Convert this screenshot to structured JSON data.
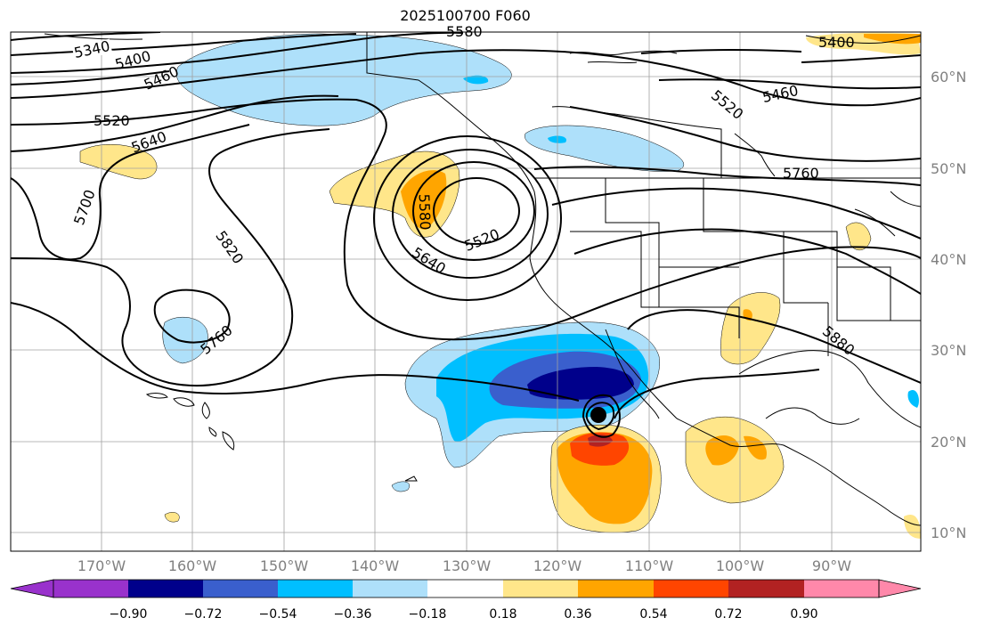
{
  "title": "2025100700 F060",
  "map": {
    "lon_ticks": [
      "170°W",
      "160°W",
      "150°W",
      "140°W",
      "130°W",
      "120°W",
      "110°W",
      "100°W",
      "90°W"
    ],
    "lat_ticks": [
      "60°N",
      "50°N",
      "40°N",
      "30°N",
      "20°N",
      "10°N"
    ],
    "contour_labels": [
      "5340",
      "5400",
      "5460",
      "5520",
      "5640",
      "5700",
      "5820",
      "5760",
      "5580",
      "5520",
      "5640",
      "5580",
      "5520",
      "5460",
      "5400",
      "5760",
      "5880"
    ],
    "storm_marker": "black-dot"
  },
  "colorbar": {
    "ticks": [
      "−0.90",
      "−0.72",
      "−0.54",
      "−0.36",
      "−0.18",
      "0.18",
      "0.36",
      "0.54",
      "0.72",
      "0.90"
    ],
    "colors": [
      "#9932cc",
      "#00008b",
      "#3a5fcd",
      "#00bfff",
      "#aee0fa",
      "#ffffff",
      "#ffe68a",
      "#ffa500",
      "#ff4500",
      "#b22222",
      "#ff88aa"
    ]
  }
}
